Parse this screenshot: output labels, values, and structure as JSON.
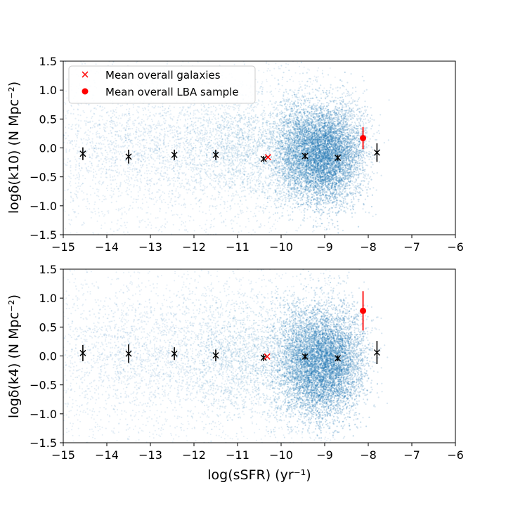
{
  "chart_data": [
    {
      "type": "scatter",
      "ylabel": "logδ(k10) (N Mpc⁻²)",
      "xlabel": "",
      "xlim": [
        -15,
        -6
      ],
      "ylim": [
        -1.5,
        1.5
      ],
      "x_ticks": [
        "−15",
        "−14",
        "−13",
        "−12",
        "−11",
        "−10",
        "−9",
        "−8",
        "−7",
        "−6"
      ],
      "y_ticks": [
        "1.5",
        "1.0",
        "0.5",
        "0.0",
        "−0.5",
        "−1.0",
        "−1.5"
      ],
      "legend": {
        "placement": "top-left",
        "entries": [
          {
            "label": "Mean overall galaxies",
            "marker": "x",
            "color": "#ff0000"
          },
          {
            "label": "Mean overall LBA sample",
            "marker": "o",
            "color": "#ff0000"
          }
        ]
      },
      "background_color": "#1f77b4",
      "binned_means": {
        "color": "#000000",
        "x": [
          -14.55,
          -13.5,
          -12.45,
          -11.5,
          -10.4,
          -9.45,
          -8.7,
          -7.8
        ],
        "y": [
          -0.1,
          -0.15,
          -0.12,
          -0.12,
          -0.19,
          -0.14,
          -0.17,
          -0.08
        ],
        "yerr": [
          0.11,
          0.12,
          0.09,
          0.09,
          0.05,
          0.05,
          0.05,
          0.16
        ]
      },
      "mean_overall_galaxies": {
        "x": -10.3,
        "y": -0.16,
        "color": "#ff0000"
      },
      "mean_overall_lba": {
        "x": -8.12,
        "y": 0.17,
        "yerr": 0.19,
        "color": "#ff0000"
      }
    },
    {
      "type": "scatter",
      "ylabel": "logδ(k4) (N Mpc⁻²)",
      "xlabel": "log(sSFR) (yr⁻¹)",
      "xlim": [
        -15,
        -6
      ],
      "ylim": [
        -1.5,
        1.5
      ],
      "x_ticks": [
        "−15",
        "−14",
        "−13",
        "−12",
        "−11",
        "−10",
        "−9",
        "−8",
        "−7",
        "−6"
      ],
      "y_ticks": [
        "1.5",
        "1.0",
        "0.5",
        "0.0",
        "−0.5",
        "−1.0",
        "−1.5"
      ],
      "background_color": "#1f77b4",
      "binned_means": {
        "color": "#000000",
        "x": [
          -14.55,
          -13.5,
          -12.45,
          -11.5,
          -10.4,
          -9.45,
          -8.7,
          -7.8
        ],
        "y": [
          0.05,
          0.04,
          0.04,
          0.01,
          -0.03,
          -0.01,
          -0.04,
          0.06
        ],
        "yerr": [
          0.14,
          0.16,
          0.11,
          0.1,
          0.06,
          0.05,
          0.05,
          0.2
        ]
      },
      "mean_overall_galaxies": {
        "x": -10.32,
        "y": -0.01,
        "color": "#ff0000"
      },
      "mean_overall_lba": {
        "x": -8.12,
        "y": 0.78,
        "yerr": 0.34,
        "color": "#ff0000"
      }
    }
  ]
}
